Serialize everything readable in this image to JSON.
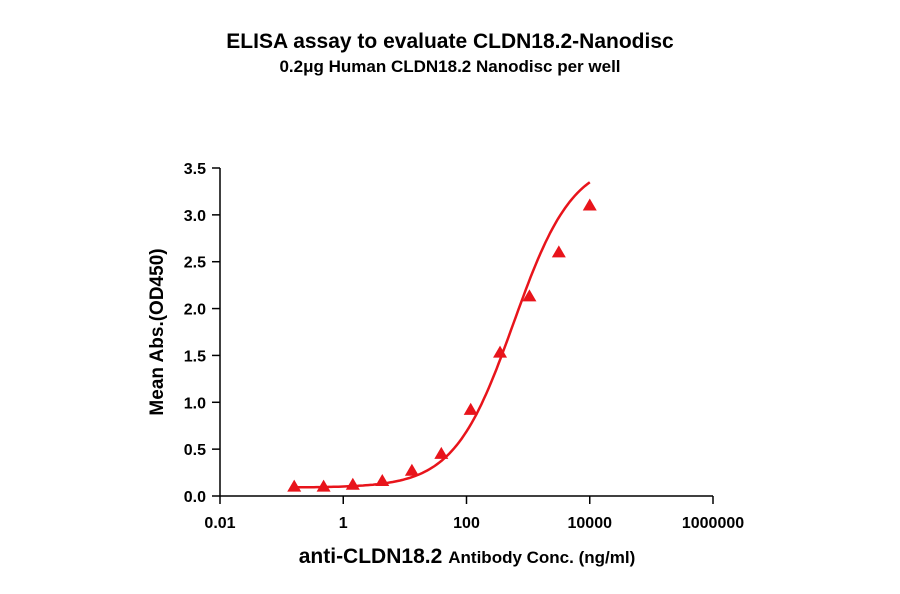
{
  "chart_data": {
    "type": "scatter",
    "title": "ELISA assay to evaluate CLDN18.2-Nanodisc",
    "subtitle": "0.2μg Human CLDN18.2 Nanodisc per well",
    "xlabel_main": "anti-CLDN18.2",
    "xlabel_rest": "Antibody Conc. (ng/ml)",
    "ylabel": "Mean Abs.(OD450)",
    "xscale": "log",
    "xlim": [
      0.01,
      1000000
    ],
    "ylim": [
      0,
      3.5
    ],
    "x_ticks": [
      0.01,
      1,
      100,
      10000,
      1000000
    ],
    "x_tick_labels": [
      "0.01",
      "1",
      "100",
      "10000",
      "1000000"
    ],
    "y_ticks": [
      0.0,
      0.5,
      1.0,
      1.5,
      2.0,
      2.5,
      3.0,
      3.5
    ],
    "y_tick_labels": [
      "0.0",
      "0.5",
      "1.0",
      "1.5",
      "2.0",
      "2.5",
      "3.0",
      "3.5"
    ],
    "grid": false,
    "series": [
      {
        "marker": "triangle",
        "color": "#e8141b",
        "x": [
          0.16,
          0.48,
          1.43,
          4.3,
          13,
          39,
          117,
          350,
          1050,
          3150,
          10000
        ],
        "y": [
          0.1,
          0.1,
          0.12,
          0.16,
          0.27,
          0.45,
          0.92,
          1.53,
          2.13,
          2.6,
          3.1
        ]
      }
    ],
    "fit_curve": {
      "type": "4PL",
      "color": "#e8141b",
      "bottom": 0.09,
      "top": 3.6,
      "ec50": 580,
      "hill": 0.9
    }
  }
}
